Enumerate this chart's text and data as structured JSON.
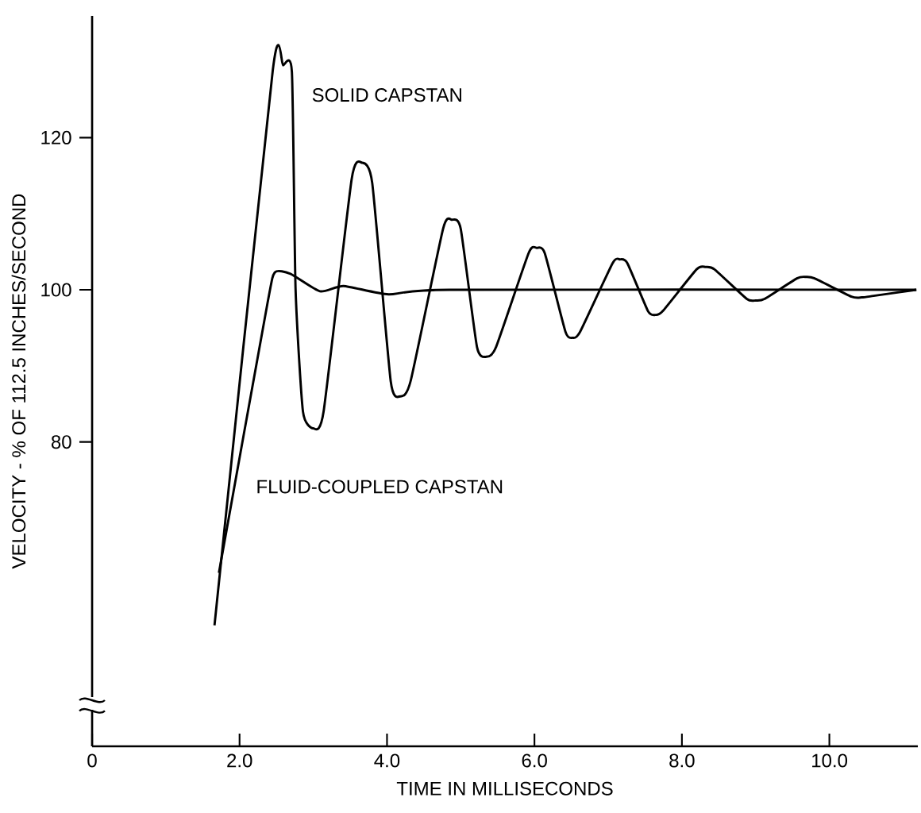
{
  "chart_data": {
    "type": "line",
    "xlabel": "TIME IN MILLISECONDS",
    "ylabel": "VELOCITY - % OF 112.5 INCHES/SECOND",
    "xlim": [
      0,
      11.2
    ],
    "ylim": [
      40,
      136
    ],
    "xticks": [
      0,
      {
        "value": 2,
        "label": "2.0"
      },
      {
        "value": 4,
        "label": "4.0"
      },
      {
        "value": 6,
        "label": "6.0"
      },
      {
        "value": 8,
        "label": "8.0"
      },
      {
        "value": 10,
        "label": "10.0"
      }
    ],
    "yticks": [
      80,
      100,
      120
    ],
    "series": [
      {
        "name": "SOLID CAPSTAN",
        "color": "#000000",
        "x": [
          1.66,
          2.45,
          2.59,
          2.71,
          2.76,
          2.86,
          3.0,
          3.14,
          3.52,
          3.66,
          3.8,
          4.05,
          4.18,
          4.32,
          4.76,
          4.88,
          5.0,
          5.22,
          5.35,
          5.48,
          5.92,
          6.03,
          6.14,
          6.42,
          6.52,
          6.62,
          7.06,
          7.16,
          7.26,
          7.54,
          7.64,
          7.74,
          8.2,
          8.32,
          8.44,
          8.88,
          9.0,
          9.12,
          9.56,
          9.68,
          9.8,
          10.3,
          10.44,
          10.6,
          11.18
        ],
        "values": [
          55.9,
          128.8,
          129.5,
          128.6,
          100,
          84,
          81.8,
          84,
          114.5,
          116.7,
          114,
          88,
          86.0,
          88,
          108,
          109.2,
          108,
          92.5,
          91.2,
          92.5,
          104.8,
          105.5,
          104.8,
          94.5,
          93.7,
          94.5,
          103.5,
          104.0,
          103.5,
          97.2,
          96.7,
          97.2,
          102.7,
          103.0,
          102.7,
          98.8,
          98.6,
          98.8,
          101.5,
          101.7,
          101.5,
          99.1,
          99.0,
          99.2,
          100
        ]
      },
      {
        "name": "FLUID-COUPLED CAPSTAN",
        "color": "#000000",
        "x": [
          1.72,
          2.38,
          2.48,
          2.69,
          3.09,
          3.41,
          4.02,
          4.85,
          11.18
        ],
        "values": [
          62.8,
          98.3,
          102.3,
          102.1,
          99.8,
          100.5,
          99.4,
          100,
          100
        ]
      }
    ]
  }
}
